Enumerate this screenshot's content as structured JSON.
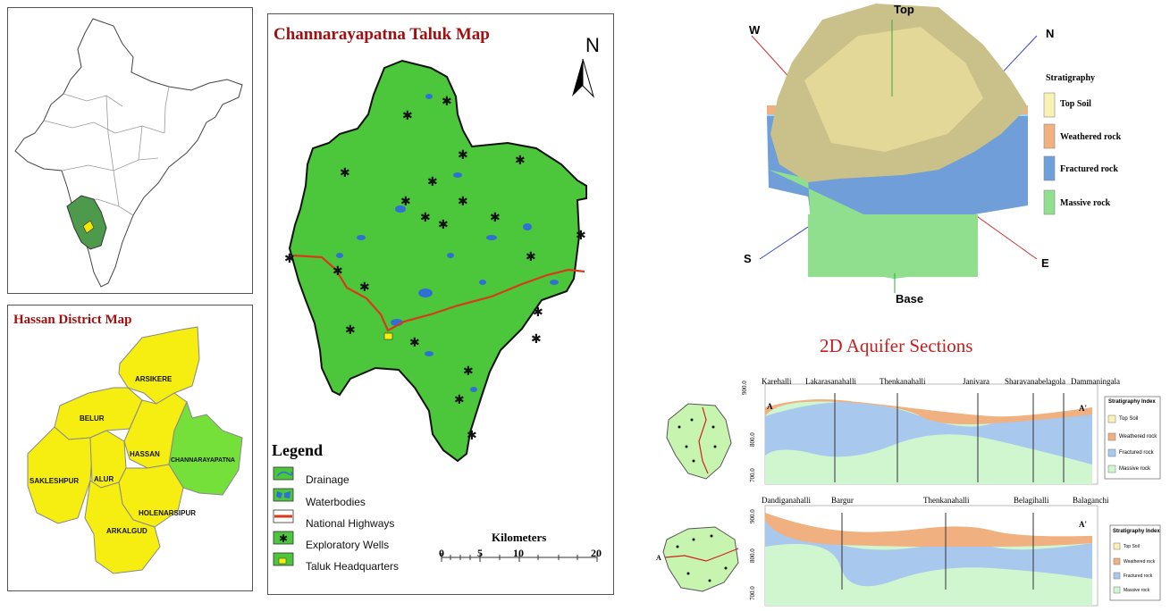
{
  "india_panel": {},
  "hassan_panel": {
    "title": "Hassan District Map",
    "districts": [
      "ARSIKERE",
      "BELUR",
      "HASSAN",
      "CHANNARAYAPATNA",
      "SAKLESHPUR",
      "ALUR",
      "HOLENARSIPUR",
      "ARKALGUD"
    ]
  },
  "taluk_panel": {
    "title": "Channarayapatna Taluk Map",
    "north": "N",
    "legend_title": "Legend",
    "legend": [
      {
        "label": "Drainage",
        "icon": "drainage-icon"
      },
      {
        "label": "Waterbodies",
        "icon": "waterbody-icon"
      },
      {
        "label": "National Highways",
        "icon": "highway-icon"
      },
      {
        "label": "Exploratory Wells",
        "icon": "well-icon"
      },
      {
        "label": "Taluk Headquarters",
        "icon": "headquarters-icon"
      }
    ],
    "scale": {
      "unit": "Kilometers",
      "ticks": [
        "0",
        "5",
        "10",
        "20"
      ]
    }
  },
  "model3d": {
    "labels": {
      "top": "Top",
      "base": "Base",
      "n": "N",
      "s": "S",
      "e": "E",
      "w": "W"
    },
    "stratigraphy_title": "Stratigraphy",
    "layers": [
      {
        "label": "Top Soil",
        "color": "#f8f2b4"
      },
      {
        "label": "Weathered rock",
        "color": "#f0b080"
      },
      {
        "label": "Fractured rock",
        "color": "#6fa0dc"
      },
      {
        "label": "Massive rock",
        "color": "#90e090"
      }
    ]
  },
  "sections": {
    "title": "2D Aquifer Sections",
    "section1": {
      "villages": [
        "Karehalli",
        "Lakarasanahalli",
        "Thenkanahalli",
        "Janivara",
        "Sharavanabelagola",
        "Dammaningala"
      ],
      "ends": [
        "A",
        "A'"
      ],
      "axis": [
        "900.0",
        "800.0",
        "700.0"
      ],
      "index_title": "Stratigraphy Index",
      "index": [
        "Top Soil",
        "Weathered rock",
        "Fractured rock",
        "Massive rock"
      ]
    },
    "section2": {
      "villages": [
        "Dandiganahalli",
        "Bargur",
        "Thenkanahalli",
        "Belagihalli",
        "Balaganchi"
      ],
      "ends": [
        "A",
        "A'"
      ],
      "axis": [
        "900.0",
        "800.0",
        "700.0"
      ],
      "index_title": "Stratigraphy Index",
      "index": [
        "Top Soil",
        "Weathered rock",
        "Fractured rock",
        "Massive rock"
      ]
    }
  }
}
